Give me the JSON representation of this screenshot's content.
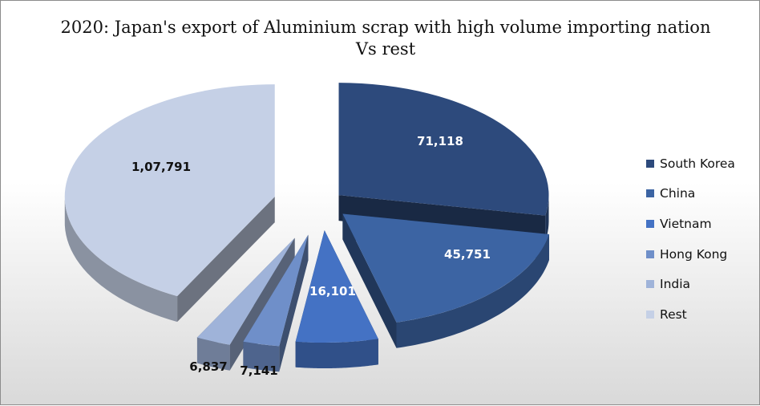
{
  "chart_data": {
    "type": "pie",
    "title": "2020: Japan's export of Aluminium scrap with high volume importing nation Vs rest",
    "legend_position": "right",
    "categories": [
      "South Korea",
      "China",
      "Vietnam",
      "Hong Kong",
      "India",
      "Rest"
    ],
    "values": [
      71118,
      45751,
      16101,
      7141,
      6837,
      107791
    ],
    "value_labels": [
      "71,118",
      "45,751",
      "16,101",
      "7,141",
      "6,837",
      "1,07,791"
    ],
    "colors": [
      "#2d4a7c",
      "#3c64a3",
      "#4472c4",
      "#6f8fc9",
      "#9fb3d9",
      "#c5d0e6"
    ]
  }
}
